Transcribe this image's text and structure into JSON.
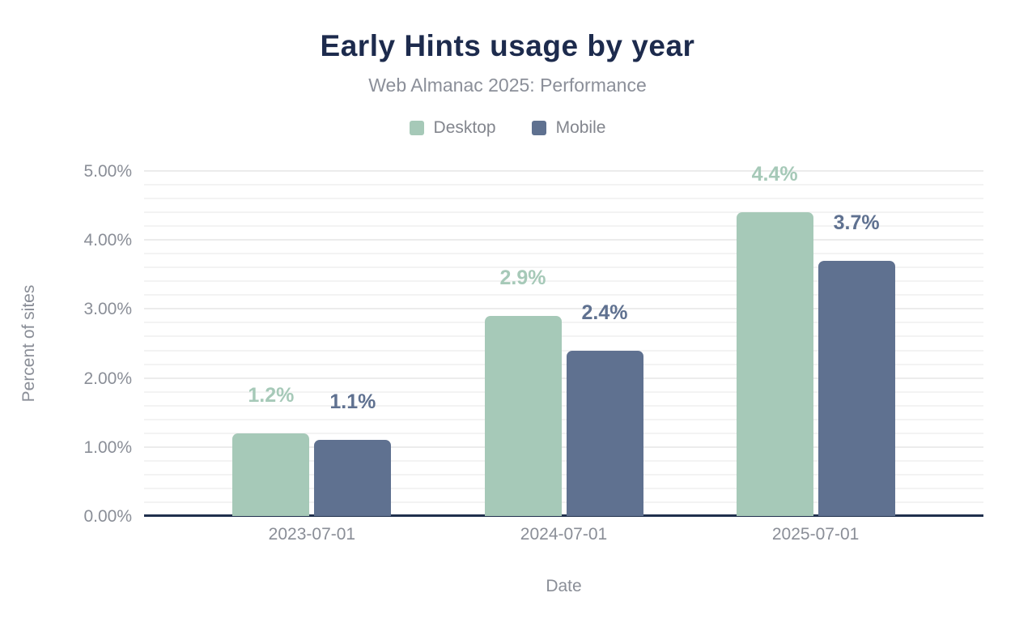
{
  "chart_data": {
    "type": "bar",
    "title": "Early Hints usage by year",
    "subtitle": "Web Almanac 2025: Performance",
    "xlabel": "Date",
    "ylabel": "Percent of sites",
    "categories": [
      "2023-07-01",
      "2024-07-01",
      "2025-07-01"
    ],
    "series": [
      {
        "name": "Desktop",
        "color": "#a6c9b8",
        "values": [
          1.2,
          2.9,
          4.4
        ],
        "labels": [
          "1.2%",
          "2.9%",
          "4.4%"
        ]
      },
      {
        "name": "Mobile",
        "color": "#5f7190",
        "values": [
          1.1,
          2.4,
          3.7
        ],
        "labels": [
          "1.1%",
          "2.4%",
          "3.7%"
        ]
      }
    ],
    "ylim": [
      0,
      5
    ],
    "y_ticks": [
      {
        "value": 0,
        "label": "0.00%"
      },
      {
        "value": 1,
        "label": "1.00%"
      },
      {
        "value": 2,
        "label": "2.00%"
      },
      {
        "value": 3,
        "label": "3.00%"
      },
      {
        "value": 4,
        "label": "4.00%"
      },
      {
        "value": 5,
        "label": "5.00%"
      }
    ],
    "minor_grid_step": 0.2,
    "grid": true,
    "legend_position": "top"
  },
  "colors": {
    "title": "#1d2b4d",
    "subtitle": "#8b8f99",
    "axis_text": "#8a8e97",
    "baseline": "#20304d",
    "gridline_minor": "#f3f3f3",
    "gridline_major": "#ececec",
    "background": "#ffffff",
    "desktop": "#a6c9b8",
    "mobile": "#5f7190"
  }
}
